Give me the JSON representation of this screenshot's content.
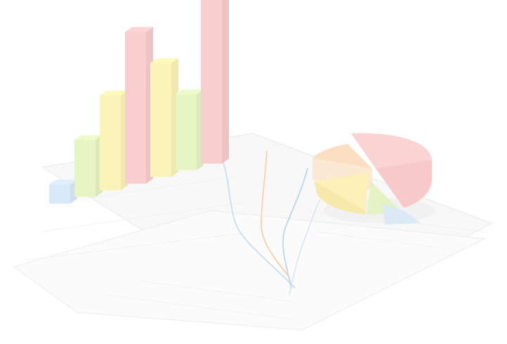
{
  "palette": {
    "background": "#ffffff",
    "paper": "#f7f7f8",
    "paper_edge": "#e6e6e8",
    "grid": "#ececef",
    "bar_blue": "#cfe6f7",
    "bar_green": "#e2f3b8",
    "bar_yellow": "#fbf1a8",
    "bar_red": "#f8c4c4",
    "bar_red_side": "#f3b3b3",
    "line_blue_1": "#b9d4ec",
    "line_blue_2": "#aac7e6",
    "line_orange": "#f3c99a",
    "line_blue_3": "#c4dcef",
    "pie_red": "#f7bebe",
    "pie_orange": "#fbd8b6",
    "pie_yellow": "#fbeeaa",
    "pie_green": "#e0efb8",
    "pie_blue": "#d5e6f6"
  },
  "bars": [
    {
      "color": "bar_blue",
      "value": 1
    },
    {
      "color": "bar_green",
      "value": 3
    },
    {
      "color": "bar_yellow",
      "value": 5
    },
    {
      "color": "bar_red",
      "value": 8
    },
    {
      "color": "bar_yellow",
      "value": 6
    },
    {
      "color": "bar_green",
      "value": 4
    },
    {
      "color": "bar_red",
      "value": 10
    }
  ],
  "pie": [
    {
      "color": "pie_red",
      "share": 0.38
    },
    {
      "color": "pie_yellow",
      "share": 0.22
    },
    {
      "color": "pie_green",
      "share": 0.14
    },
    {
      "color": "pie_blue",
      "share": 0.08
    },
    {
      "color": "pie_orange",
      "share": 0.18
    }
  ]
}
